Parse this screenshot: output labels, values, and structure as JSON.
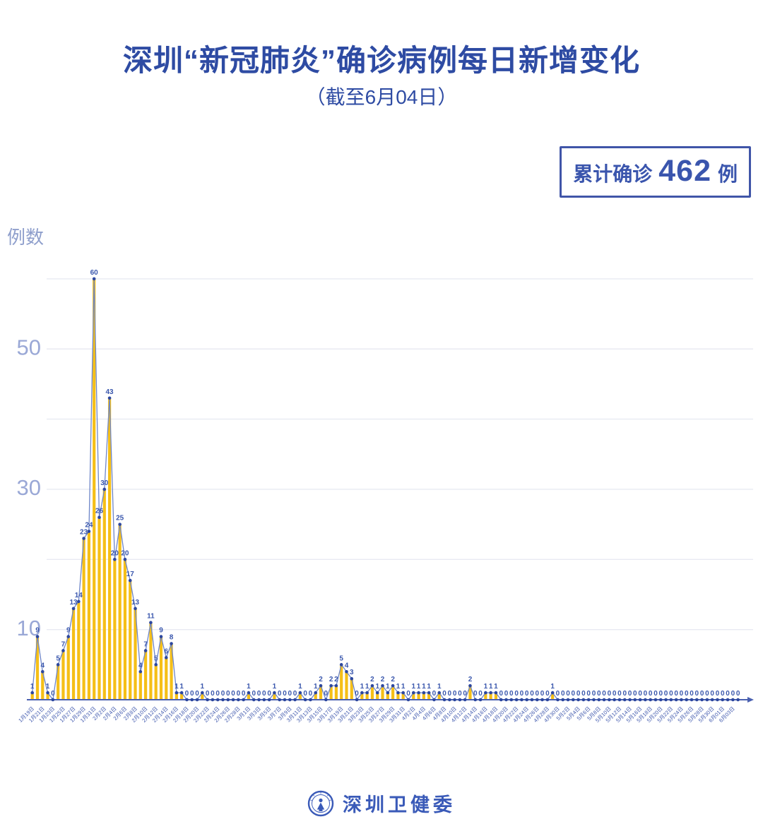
{
  "title": "深圳“新冠肺炎”确诊病例每日新增变化",
  "subtitle": "（截至6月04日）",
  "badge": {
    "prefix": "累计确诊",
    "value": "462",
    "suffix": "例"
  },
  "y_axis_title": "例数",
  "footer": {
    "org_name": "深圳卫健委",
    "logo": "shenzhen-health-commission-emblem"
  },
  "colors": {
    "title_blue": "#2e4ba3",
    "badge_blue": "#3a55ad",
    "grid": "#e8eaf2",
    "bar_yellow": "#f5bf17",
    "line_blue": "#6e86c8",
    "dot_navy": "#2c479f",
    "value_label_blue": "#3a57ad",
    "x_label_blue": "#4059ae",
    "y_label_light": "#9aa8d6",
    "axis_line_blue": "#4a60b0"
  },
  "chart_data": {
    "type": "line",
    "style": "line with point markers and yellow drop bars to baseline, value label above every point",
    "title": "深圳“新冠肺炎”确诊病例每日新增变化（截至6月04日）",
    "xlabel": "",
    "ylabel": "例数",
    "ylim": [
      0,
      60
    ],
    "gridlines_at": [
      10,
      20,
      30,
      40,
      50,
      60
    ],
    "yticks_labeled": [
      10,
      30,
      50
    ],
    "x_label_every": 2,
    "legend": "none",
    "x": [
      "1月19日",
      "1月20日",
      "1月21日",
      "1月22日",
      "1月23日",
      "1月24日",
      "1月25日",
      "1月26日",
      "1月27日",
      "1月28日",
      "1月29日",
      "1月30日",
      "1月31日",
      "2月1日",
      "2月2日",
      "2月3日",
      "2月4日",
      "2月5日",
      "2月6日",
      "2月7日",
      "2月8日",
      "2月9日",
      "2月10日",
      "2月11日",
      "2月12日",
      "2月13日",
      "2月14日",
      "2月15日",
      "2月16日",
      "2月17日",
      "2月18日",
      "2月19日",
      "2月20日",
      "2月21日",
      "2月22日",
      "2月23日",
      "2月24日",
      "2月25日",
      "2月26日",
      "2月27日",
      "2月28日",
      "2月29日",
      "3月1日",
      "3月2日",
      "3月3日",
      "3月4日",
      "3月5日",
      "3月6日",
      "3月7日",
      "3月8日",
      "3月9日",
      "3月10日",
      "3月11日",
      "3月12日",
      "3月13日",
      "3月14日",
      "3月15日",
      "3月16日",
      "3月17日",
      "3月18日",
      "3月19日",
      "3月20日",
      "3月21日",
      "3月22日",
      "3月23日",
      "3月24日",
      "3月25日",
      "3月26日",
      "3月27日",
      "3月28日",
      "3月29日",
      "3月30日",
      "3月31日",
      "4月1日",
      "4月2日",
      "4月3日",
      "4月4日",
      "4月5日",
      "4月6日",
      "4月7日",
      "4月8日",
      "4月9日",
      "4月10日",
      "4月11日",
      "4月12日",
      "4月13日",
      "4月14日",
      "4月15日",
      "4月16日",
      "4月17日",
      "4月18日",
      "4月19日",
      "4月20日",
      "4月21日",
      "4月22日",
      "4月23日",
      "4月24日",
      "4月25日",
      "4月26日",
      "4月27日",
      "4月28日",
      "4月29日",
      "4月30日",
      "5月1日",
      "5月2日",
      "5月3日",
      "5月4日",
      "5月5日",
      "5月6日",
      "5月7日",
      "5月8日",
      "5月9日",
      "5月10日",
      "5月11日",
      "5月12日",
      "5月13日",
      "5月14日",
      "5月15日",
      "5月16日",
      "5月17日",
      "5月18日",
      "5月19日",
      "5月20日",
      "5月21日",
      "5月22日",
      "5月23日",
      "5月24日",
      "5月25日",
      "5月26日",
      "5月27日",
      "5月28日",
      "5月29日",
      "5月30日",
      "5月31日",
      "6月01日",
      "6月02日",
      "6月03日",
      "6月04日"
    ],
    "values": [
      1,
      9,
      4,
      1,
      0,
      5,
      7,
      9,
      13,
      14,
      23,
      24,
      60,
      26,
      30,
      43,
      20,
      25,
      20,
      17,
      13,
      4,
      7,
      11,
      5,
      9,
      6,
      8,
      1,
      1,
      0,
      0,
      0,
      1,
      0,
      0,
      0,
      0,
      0,
      0,
      0,
      0,
      1,
      0,
      0,
      0,
      0,
      1,
      0,
      0,
      0,
      0,
      1,
      0,
      0,
      1,
      2,
      0,
      2,
      2,
      5,
      4,
      3,
      0,
      1,
      1,
      2,
      1,
      2,
      1,
      2,
      1,
      1,
      0,
      1,
      1,
      1,
      1,
      0,
      1,
      0,
      0,
      0,
      0,
      0,
      2,
      0,
      0,
      1,
      1,
      1,
      0,
      0,
      0,
      0,
      0,
      0,
      0,
      0,
      0,
      0,
      1,
      0,
      0,
      0,
      0,
      0,
      0,
      0,
      0,
      0,
      0,
      0,
      0,
      0,
      0,
      0,
      0,
      0,
      0,
      0,
      0,
      0,
      0,
      0,
      0,
      0,
      0,
      0,
      0,
      0,
      0,
      0,
      0,
      0,
      0,
      0,
      0
    ],
    "total_check": 462
  }
}
